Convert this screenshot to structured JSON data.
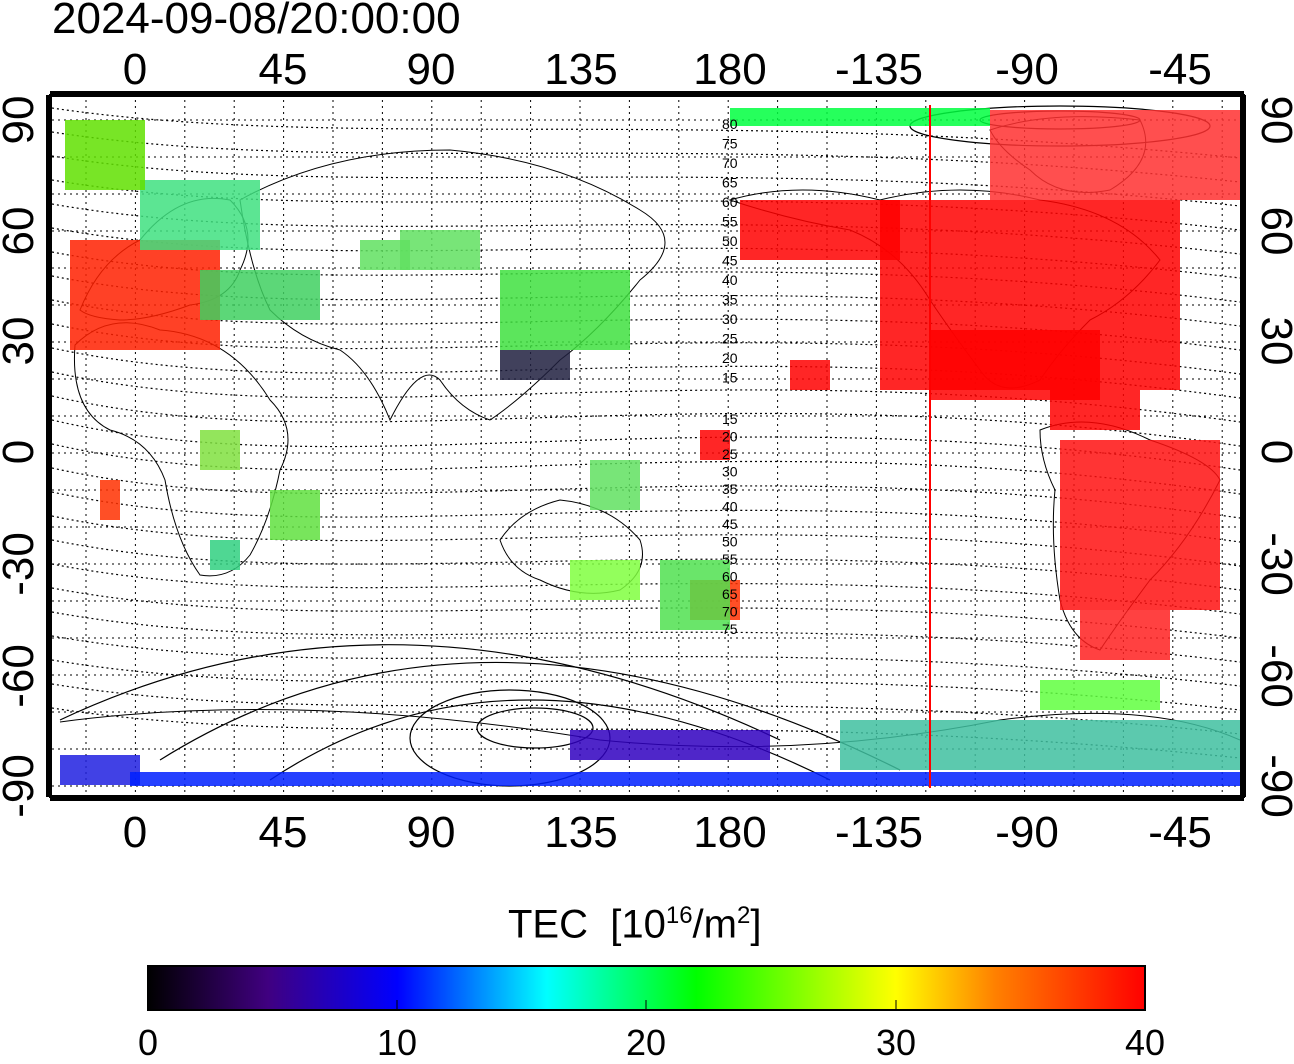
{
  "timestamp": "2024-09-08/20:00:00",
  "map": {
    "lon_ticks_top": [
      "0",
      "45",
      "90",
      "135",
      "180",
      "-135",
      "-90",
      "-45"
    ],
    "lon_ticks_bottom": [
      "0",
      "45",
      "90",
      "135",
      "180",
      "-135",
      "-90",
      "-45"
    ],
    "lat_ticks_left": [
      "90",
      "60",
      "30",
      "0",
      "-30",
      "-60",
      "-90"
    ],
    "lat_ticks_right": [
      "90",
      "60",
      "30",
      "0",
      "-30",
      "-60",
      "-90"
    ],
    "magnetic_lat_labels": [
      "80",
      "75",
      "70",
      "65",
      "60",
      "55",
      "50",
      "45",
      "40",
      "35",
      "30",
      "25",
      "20",
      "15",
      "15",
      "20",
      "25",
      "30",
      "35",
      "40",
      "45",
      "50",
      "55",
      "60",
      "65",
      "70",
      "75"
    ],
    "sun_meridian_color": "#ff0000"
  },
  "colorbar": {
    "title": "TEC",
    "unit_prefix": "[10",
    "unit_exp": "16",
    "unit_mid": "/m",
    "unit_exp2": "2",
    "unit_suffix": "]",
    "tick_labels": [
      "0",
      "10",
      "20",
      "30",
      "40"
    ],
    "min": 0,
    "max": 40
  },
  "colors": {
    "high_tec": "#ff0000",
    "mid_tec": "#00ff00",
    "low_tec": "#0000ff"
  }
}
